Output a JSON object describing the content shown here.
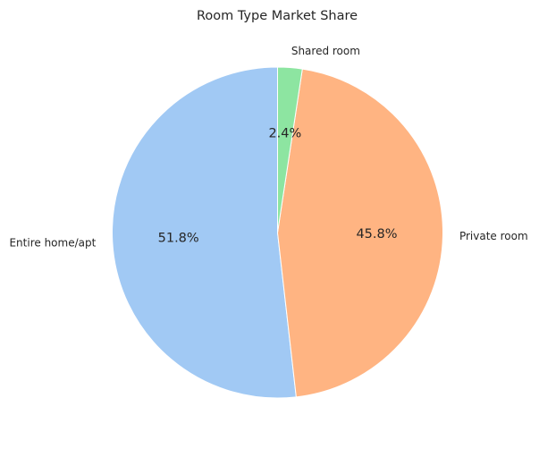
{
  "chart_data": {
    "type": "pie",
    "title": "Room Type Market Share",
    "slices": [
      {
        "label": "Entire home/apt",
        "value": 51.8,
        "pct_label": "51.8%",
        "color": "#a1c9f4"
      },
      {
        "label": "Private room",
        "value": 45.8,
        "pct_label": "45.8%",
        "color": "#ffb482"
      },
      {
        "label": "Shared room",
        "value": 2.4,
        "pct_label": "2.4%",
        "color": "#8de5a1"
      }
    ],
    "legend": "none"
  }
}
